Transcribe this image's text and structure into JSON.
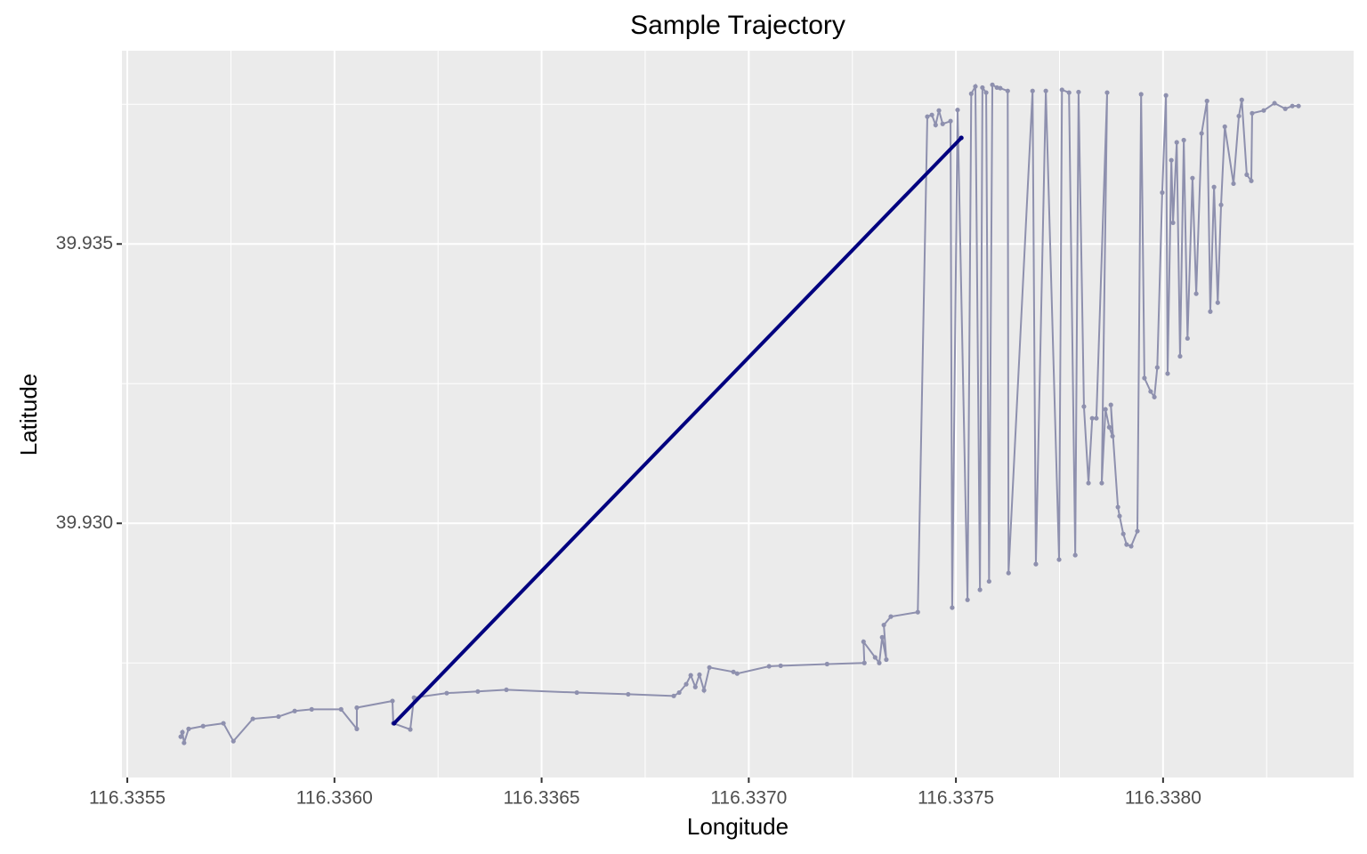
{
  "chart_data": {
    "type": "scatter",
    "title": "Sample Trajectory",
    "x_label": "Longitude",
    "y_label": "Latitude",
    "xlim": [
      116.335487,
      116.33846
    ],
    "ylim": [
      39.92545,
      39.93846
    ],
    "xticks": [
      116.3355,
      {
        "value": 116.336,
        "label": "116.3360"
      },
      116.3365,
      {
        "value": 116.337,
        "label": "116.3370"
      },
      116.3375,
      {
        "value": 116.338,
        "label": "116.3380"
      }
    ],
    "yticks": [
      {
        "value": 39.93,
        "label": "39.930"
      },
      39.935
    ],
    "xminor": [
      116.33575,
      116.33625,
      116.33675,
      116.33725,
      116.33775,
      116.33825
    ],
    "yminor": [
      39.9275,
      39.9325,
      39.9375
    ],
    "grid": true,
    "background": "#ebebeb",
    "series": [
      {
        "color": "#8e90ae",
        "x": [
          116.335629,
          116.335633,
          116.335637,
          116.335648,
          116.335683,
          116.335732,
          116.335756,
          116.335803,
          116.335865,
          116.335904,
          116.335945,
          116.336016,
          116.336054,
          116.336054,
          116.33614,
          116.336142,
          116.336183,
          116.336192,
          116.336271,
          116.336346,
          116.336415,
          116.336585,
          116.336709,
          116.336819,
          116.336832,
          116.336849,
          116.33686,
          116.336871,
          116.336881,
          116.336892,
          116.336905,
          116.336963,
          116.336972,
          116.337049,
          116.337077,
          116.337189,
          116.337279,
          116.337277,
          116.337305,
          116.337315,
          116.337322,
          116.337332,
          116.337326,
          116.337343,
          116.337408,
          116.337431,
          116.337442,
          116.337451,
          116.337459,
          116.337468,
          116.337487,
          116.337491,
          116.337504,
          116.337528,
          116.337537,
          116.337547,
          116.337558,
          116.337564,
          116.337573,
          116.33758,
          116.337588,
          116.337599,
          116.337607,
          116.337625,
          116.337627,
          116.337685,
          116.337693,
          116.337717,
          116.337749,
          116.337756,
          116.337773,
          116.337788,
          116.337796,
          116.337809,
          116.33782,
          116.337829,
          116.337839,
          116.337865,
          116.337852,
          116.337861,
          116.33787,
          116.337878,
          116.337874,
          116.337891,
          116.337895,
          116.337904,
          116.337912,
          116.337923,
          116.337938,
          116.337947,
          116.337955,
          116.33797,
          116.337979,
          116.337986,
          116.337998,
          116.338007,
          116.338011,
          116.33802,
          116.338024,
          116.338033,
          116.338041,
          116.33805,
          116.338059,
          116.338071,
          116.33808,
          116.338093,
          116.338106,
          116.338114,
          116.338123,
          116.338132,
          116.33814,
          116.338149,
          116.33817,
          116.338183,
          116.33819,
          116.338202,
          116.338213,
          116.338215,
          116.338243,
          116.338269,
          116.338295,
          116.338312,
          116.338327
        ],
        "values": [
          39.92618,
          39.92626,
          39.92607,
          39.92632,
          39.92637,
          39.92642,
          39.9261,
          39.9265,
          39.92654,
          39.92664,
          39.92667,
          39.92667,
          39.92632,
          39.9267,
          39.92682,
          39.92642,
          39.92631,
          39.92688,
          39.92696,
          39.92699,
          39.92702,
          39.92697,
          39.92694,
          39.92691,
          39.92697,
          39.92712,
          39.92728,
          39.92707,
          39.92729,
          39.92701,
          39.92742,
          39.92734,
          39.92731,
          39.92744,
          39.92745,
          39.92748,
          39.9275,
          39.92788,
          39.9276,
          39.9275,
          39.92796,
          39.92756,
          39.92818,
          39.92833,
          39.92841,
          39.93728,
          39.93731,
          39.93713,
          39.93739,
          39.93715,
          39.9372,
          39.92849,
          39.9374,
          39.92863,
          39.93769,
          39.93782,
          39.92881,
          39.9378,
          39.93771,
          39.92896,
          39.93785,
          39.9378,
          39.93779,
          39.93774,
          39.92911,
          39.93774,
          39.92927,
          39.93774,
          39.92935,
          39.93776,
          39.93771,
          39.92943,
          39.93772,
          39.93209,
          39.93072,
          39.93188,
          39.93188,
          39.93771,
          39.93072,
          39.93204,
          39.93172,
          39.93156,
          39.93212,
          39.93029,
          39.93013,
          39.92981,
          39.92962,
          39.92959,
          39.92986,
          39.93768,
          39.9326,
          39.93236,
          39.93226,
          39.93279,
          39.93592,
          39.93766,
          39.93268,
          39.9365,
          39.93538,
          39.93682,
          39.93299,
          39.93686,
          39.93331,
          39.93618,
          39.93411,
          39.93698,
          39.93756,
          39.93379,
          39.93602,
          39.93395,
          39.9357,
          39.9371,
          39.93608,
          39.93729,
          39.93758,
          39.93624,
          39.93613,
          39.93734,
          39.93739,
          39.93752,
          39.93742,
          39.93747,
          39.93747
        ]
      },
      {
        "color": "#00007f",
        "x": [
          116.336144,
          116.337513
        ],
        "values": [
          39.92642,
          39.9369
        ]
      }
    ]
  }
}
